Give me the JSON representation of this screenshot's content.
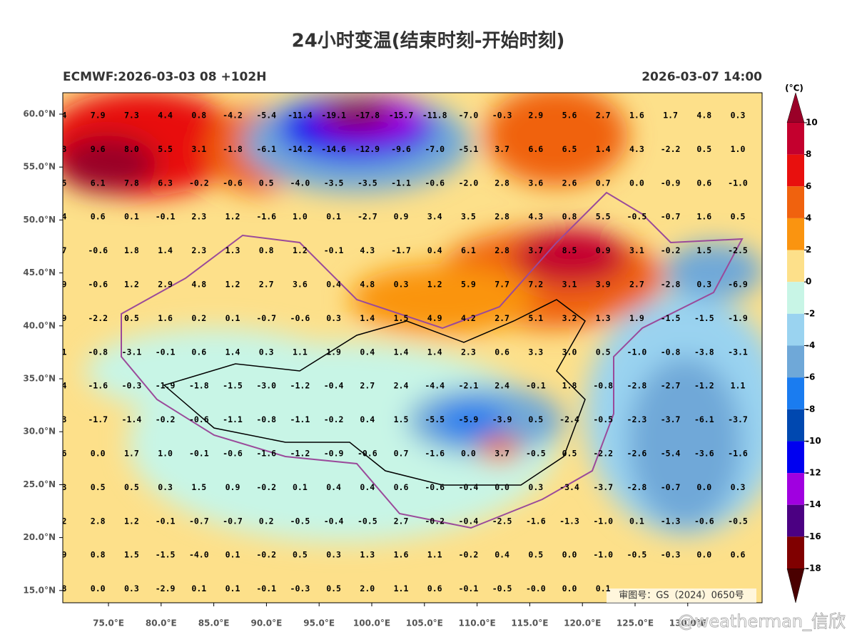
{
  "header": {
    "title": "24小时变温(结束时刻-开始时刻)",
    "left": "ECMWF:2026-03-03 08 +102H",
    "right": "2026-03-07 14:00"
  },
  "lat_labels": [
    "60.0°N",
    "55.0°N",
    "50.0°N",
    "45.0°N",
    "40.0°N",
    "35.0°N",
    "30.0°N",
    "25.0°N",
    "20.0°N",
    "15.0°N"
  ],
  "lon_labels": [
    "75.0°E",
    "80.0°E",
    "85.0°E",
    "90.0°E",
    "95.0°E",
    "100.0°E",
    "105.0°E",
    "110.0°E",
    "115.0°E",
    "120.0°E",
    "125.0°E",
    "130.0°E"
  ],
  "grid_values": [
    [
      "4",
      "7.9",
      "7.3",
      "4.4",
      "0.8",
      "-4.2",
      "-5.4",
      "-11.4",
      "-19.1",
      "-17.8",
      "-15.7",
      "-11.8",
      "-7.0",
      "-0.3",
      "2.9",
      "5.6",
      "2.7",
      "1.6",
      "1.7",
      "4.8",
      "0.3"
    ],
    [
      "3",
      "9.6",
      "8.0",
      "5.5",
      "3.1",
      "-1.8",
      "-6.1",
      "-14.2",
      "-14.6",
      "-12.9",
      "-9.6",
      "-7.0",
      "-5.1",
      "3.7",
      "6.6",
      "6.5",
      "1.4",
      "4.3",
      "-2.2",
      "0.5",
      "1.0"
    ],
    [
      "5",
      "6.1",
      "7.8",
      "6.3",
      "-0.2",
      "-0.6",
      "0.5",
      "-4.0",
      "-3.5",
      "-3.5",
      "-1.1",
      "-0.6",
      "-2.0",
      "2.8",
      "3.6",
      "2.6",
      "0.7",
      "0.0",
      "-0.9",
      "0.6",
      "-1.0"
    ],
    [
      "4",
      "0.6",
      "0.1",
      "-0.1",
      "2.3",
      "1.2",
      "-1.6",
      "1.0",
      "0.1",
      "-2.7",
      "0.9",
      "3.4",
      "3.5",
      "2.8",
      "4.3",
      "0.8",
      "5.5",
      "-0.5",
      "-0.7",
      "1.6",
      "0.5"
    ],
    [
      "7",
      "-0.6",
      "1.8",
      "1.4",
      "2.3",
      "1.3",
      "0.8",
      "1.2",
      "-0.1",
      "4.3",
      "-1.7",
      "0.4",
      "6.1",
      "2.8",
      "3.7",
      "8.5",
      "0.9",
      "3.1",
      "-0.2",
      "1.5",
      "-2.5"
    ],
    [
      "9",
      "-0.6",
      "1.2",
      "2.9",
      "4.8",
      "1.2",
      "2.7",
      "3.6",
      "0.4",
      "4.8",
      "0.3",
      "1.2",
      "5.9",
      "7.7",
      "7.2",
      "3.1",
      "3.9",
      "2.7",
      "-2.8",
      "0.3",
      "-6.9"
    ],
    [
      "9",
      "-2.2",
      "0.5",
      "1.6",
      "0.2",
      "0.1",
      "-0.7",
      "-0.6",
      "0.3",
      "1.4",
      "1.5",
      "4.9",
      "4.2",
      "2.7",
      "5.1",
      "3.2",
      "1.3",
      "1.9",
      "-1.5",
      "-1.5",
      "-1.9"
    ],
    [
      "1",
      "-0.8",
      "-3.1",
      "-0.1",
      "0.6",
      "1.4",
      "0.3",
      "1.1",
      "1.9",
      "0.4",
      "1.4",
      "1.4",
      "2.3",
      "0.6",
      "3.3",
      "3.0",
      "0.5",
      "-1.0",
      "-0.8",
      "-3.8",
      "-3.1"
    ],
    [
      "4",
      "-1.6",
      "-0.3",
      "-1.9",
      "-1.8",
      "-1.5",
      "-3.0",
      "-1.2",
      "-0.4",
      "2.7",
      "2.4",
      "-4.4",
      "-2.1",
      "2.4",
      "-0.1",
      "1.8",
      "-0.8",
      "-2.8",
      "-2.7",
      "-1.2",
      "1.1"
    ],
    [
      "3",
      "-1.7",
      "-1.4",
      "-0.2",
      "-0.6",
      "-1.1",
      "-0.8",
      "-1.1",
      "-0.2",
      "0.4",
      "1.5",
      "-5.5",
      "-5.9",
      "-3.9",
      "0.5",
      "-2.4",
      "-0.5",
      "-2.3",
      "-3.7",
      "-6.1",
      "-3.7"
    ],
    [
      "6",
      "0.0",
      "1.7",
      "1.0",
      "-0.1",
      "-0.6",
      "-1.6",
      "-1.2",
      "-0.9",
      "-0.6",
      "0.7",
      "-1.6",
      "0.0",
      "3.7",
      "-0.5",
      "0.5",
      "-2.2",
      "-2.6",
      "-5.4",
      "-3.6",
      "-1.6"
    ],
    [
      "3",
      "0.5",
      "0.5",
      "0.3",
      "1.5",
      "0.9",
      "-0.2",
      "0.1",
      "0.4",
      "0.4",
      "0.6",
      "-0.6",
      "-0.4",
      "0.0",
      "0.3",
      "-3.4",
      "-3.7",
      "-2.8",
      "-0.7",
      "0.0",
      "0.3"
    ],
    [
      "2",
      "2.8",
      "1.2",
      "-0.1",
      "-0.7",
      "-0.7",
      "0.2",
      "-0.5",
      "-0.4",
      "-0.5",
      "2.7",
      "-0.2",
      "-0.4",
      "-2.5",
      "-1.6",
      "-1.3",
      "-1.0",
      "0.1",
      "-1.3",
      "-0.6",
      "-0.5"
    ],
    [
      "9",
      "0.8",
      "1.5",
      "-1.5",
      "-4.0",
      "0.1",
      "-0.2",
      "0.5",
      "0.3",
      "1.3",
      "1.6",
      "1.1",
      "-0.2",
      "0.4",
      "0.5",
      "0.0",
      "-1.0",
      "-0.5",
      "-0.3",
      "0.0",
      "0.6"
    ],
    [
      "8",
      "0.0",
      "0.3",
      "-2.9",
      "0.1",
      "0.1",
      "-0.1",
      "-0.3",
      "0.5",
      "2.0",
      "1.1",
      "0.6",
      "-0.1",
      "-0.5",
      "-0.0",
      "0.0",
      "0.1"
    ]
  ],
  "colorbar": {
    "unit": "(°C)",
    "ticks": [
      10,
      8,
      6,
      4,
      2,
      0,
      -2,
      -4,
      -6,
      -8,
      -10,
      -12,
      -14,
      -16,
      -18
    ],
    "colors": [
      "#c4002e",
      "#e8100e",
      "#f0620e",
      "#fa9410",
      "#fde08a",
      "#c8f5e6",
      "#9ad3f0",
      "#6fa8d8",
      "#1a7cf0",
      "#0048b0",
      "#0000f0",
      "#a000e0",
      "#4b0082",
      "#800000"
    ],
    "top_color": "#9a0028",
    "bottom_color": "#4a0000"
  },
  "map_note": "审图号：GS（2024）0650号",
  "watermark": "@weatherman_信欣"
}
